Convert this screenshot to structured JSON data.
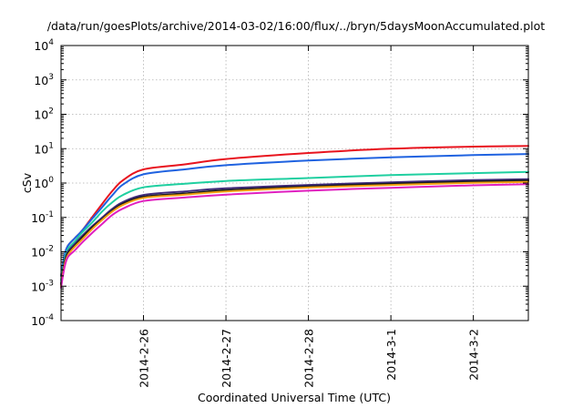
{
  "chart_data": {
    "type": "line",
    "title": "/data/run/goesPlots/archive/2014-03-02/16:00/flux/../bryn/5daysMoonAccumulated.plot",
    "xlabel": "Coordinated Universal Time (UTC)",
    "ylabel": "cSv",
    "yscale": "log",
    "ylim": [
      0.0001,
      10000
    ],
    "y_ticks": [
      {
        "base": "10",
        "exp": "-4"
      },
      {
        "base": "10",
        "exp": "-3"
      },
      {
        "base": "10",
        "exp": "-2"
      },
      {
        "base": "10",
        "exp": "-1"
      },
      {
        "base": "10",
        "exp": "0"
      },
      {
        "base": "10",
        "exp": "1"
      },
      {
        "base": "10",
        "exp": "2"
      },
      {
        "base": "10",
        "exp": "3"
      },
      {
        "base": "10",
        "exp": "4"
      }
    ],
    "xlim": [
      "2014-02-25T00:00",
      "2014-03-02T16:00"
    ],
    "x_ticks": [
      "2014-2-26",
      "2014-2-27",
      "2014-2-28",
      "2014-3-1",
      "2014-3-2"
    ],
    "grid": true,
    "x": [
      "2014-02-25T00:00",
      "2014-02-25T01:00",
      "2014-02-25T02:00",
      "2014-02-25T04:00",
      "2014-02-25T06:00",
      "2014-02-25T09:00",
      "2014-02-25T12:00",
      "2014-02-25T15:00",
      "2014-02-25T18:00",
      "2014-02-26T00:00",
      "2014-02-26T12:00",
      "2014-02-27T00:00",
      "2014-02-28T00:00",
      "2014-03-01T00:00",
      "2014-03-02T00:00",
      "2014-03-02T16:00"
    ],
    "series": [
      {
        "color": "#e8141e",
        "values": [
          0.002,
          0.008,
          0.015,
          0.025,
          0.04,
          0.1,
          0.25,
          0.6,
          1.2,
          2.5,
          3.5,
          5.0,
          7.5,
          10.0,
          11.5,
          12.0
        ]
      },
      {
        "color": "#1f62e0",
        "values": [
          0.002,
          0.008,
          0.015,
          0.025,
          0.04,
          0.09,
          0.2,
          0.45,
          0.9,
          1.8,
          2.5,
          3.3,
          4.5,
          5.6,
          6.5,
          7.0
        ]
      },
      {
        "color": "#1fcfa0",
        "values": [
          0.0015,
          0.006,
          0.012,
          0.02,
          0.035,
          0.07,
          0.15,
          0.28,
          0.45,
          0.75,
          0.95,
          1.15,
          1.4,
          1.7,
          1.95,
          2.1
        ]
      },
      {
        "color": "#3e2a7a",
        "values": [
          0.0012,
          0.005,
          0.01,
          0.017,
          0.028,
          0.055,
          0.1,
          0.18,
          0.28,
          0.45,
          0.57,
          0.7,
          0.88,
          1.05,
          1.22,
          1.3
        ]
      },
      {
        "color": "#1a1a1a",
        "values": [
          0.0011,
          0.0045,
          0.009,
          0.015,
          0.025,
          0.05,
          0.09,
          0.16,
          0.25,
          0.4,
          0.5,
          0.62,
          0.8,
          0.96,
          1.1,
          1.18
        ]
      },
      {
        "color": "#f2a012",
        "values": [
          0.001,
          0.004,
          0.008,
          0.014,
          0.022,
          0.045,
          0.085,
          0.15,
          0.23,
          0.37,
          0.46,
          0.57,
          0.74,
          0.88,
          1.02,
          1.08
        ]
      },
      {
        "color": "#e020c0",
        "values": [
          0.0009,
          0.0035,
          0.007,
          0.011,
          0.018,
          0.035,
          0.065,
          0.12,
          0.18,
          0.3,
          0.38,
          0.46,
          0.6,
          0.73,
          0.86,
          0.93
        ]
      }
    ]
  }
}
